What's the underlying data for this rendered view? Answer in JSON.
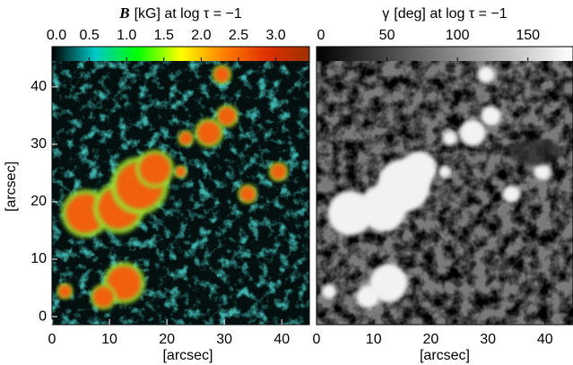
{
  "chart_data": [
    {
      "type": "image",
      "title_symbol": "B",
      "title": "[kG] at log τ = −1",
      "colorbar": {
        "clim": [
          0,
          3.45
        ],
        "ticks": [
          {
            "value": 0,
            "label": "0.0"
          },
          0.5,
          {
            "value": 1,
            "label": "1.0"
          },
          1.5,
          {
            "value": 2,
            "label": "2.0"
          },
          2.5,
          {
            "value": 3,
            "label": "3.0"
          }
        ],
        "colors": [
          "#000000",
          "#00c8c8",
          "#00ff00",
          "#ffff00",
          "#ff8000",
          "#e03000",
          "#a03000"
        ]
      },
      "xlim": [
        0,
        44.8
      ],
      "ylim": [
        -1.4,
        47
      ],
      "xticks": [
        0,
        10,
        20,
        30,
        40
      ],
      "yticks": [
        0,
        10,
        20,
        30,
        40
      ],
      "xlabel": "[arcsec]",
      "ylabel": "[arcsec]"
    },
    {
      "type": "image",
      "title_symbol": "γ",
      "title": "[deg] at log τ = −1",
      "colorbar": {
        "clim": [
          0,
          182
        ],
        "ticks": [
          0,
          50,
          100,
          150
        ],
        "colors": [
          "#000000",
          "#ffffff"
        ]
      },
      "xlim": [
        0,
        44.9
      ],
      "xticks": [
        0,
        10,
        20,
        30,
        40
      ],
      "xlabel": "[arcsec]"
    }
  ]
}
